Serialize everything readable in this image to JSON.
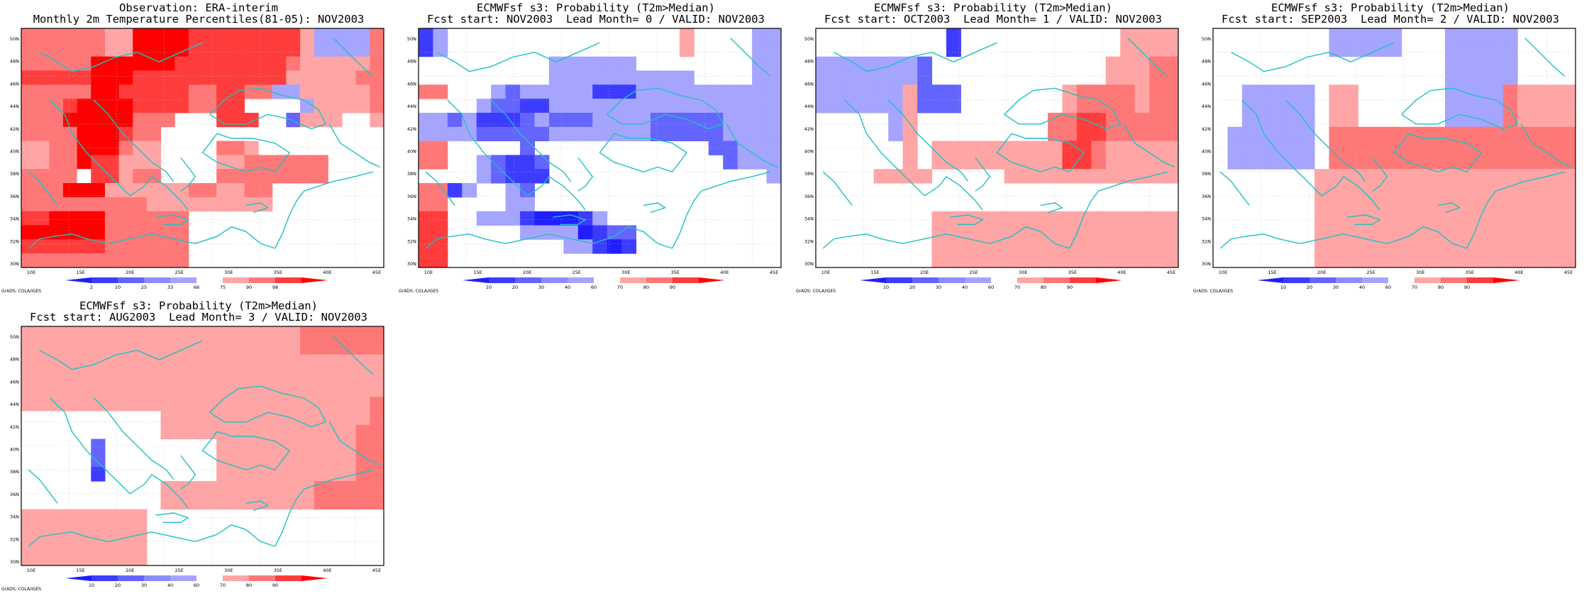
{
  "panels": [
    {
      "title1": "Observation: ERA-interim",
      "title2": "Monthly 2m Temperature Percentiles(81-05): NOV2003",
      "legend_labels": [
        "2",
        "10",
        "25",
        "33",
        "66",
        "75",
        "90",
        "98"
      ],
      "legend_type": "percentile",
      "credit": "GrADS: COLA/IGES",
      "grid": [
        "66666655888877777777544446",
        "66666655888877777777544446",
        "66666888888777777776555556",
        "77777888777777777775555566",
        "66666887777766776644555556",
        "66678888777766770000455556",
        "66688888666000777003555005",
        "66668887660000000000000000",
        "55668886550000665000000000",
        "55668775550000556666660000",
        "66669775660000666666660000",
        "66688855555566556600000000",
        "66666666655555555500000000",
        "77888866666600000000000000",
        "88888866666600000000000000",
        "77777766666600000000000000",
        "66666666666600000000000000"
      ]
    },
    {
      "title1": "ECMWFsf s3: Probability (T2m>Median)",
      "title2": "Fcst start: NOV2003  Lead Month= 0 / VALID: NOV2003",
      "legend_labels": [
        "10",
        "20",
        "30",
        "40",
        "60",
        "70",
        "80",
        "90"
      ],
      "legend_type": "probability",
      "credit": "GrADS: COLA/IGES",
      "grid": [
        "2400000000000000005000044",
        "2400000000000000005000044",
        "0000000004444440000000044",
        "0000000004444444444000044",
        "6600043444442224444444444",
        "0000433224444444444444444",
        "4434222343334444333334444",
        "4444333334444444333334444",
        "6600000300000000000033444",
        "6600432230000000000003444",
        "0000432220000000000000004",
        "6624004300000000000000000",
        "6600004400000000000000000",
        "7700444211124000000000000",
        "7700000444412330000000000",
        "7700000000442120000000000",
        "7700000000000000000000000"
      ]
    },
    {
      "title1": "ECMWFsf s3: Probability (T2m>Median)",
      "title2": "Fcst start: OCT2003  Lead Month= 1 / VALID: NOV2003",
      "legend_labels": [
        "10",
        "20",
        "30",
        "40",
        "60",
        "70",
        "80",
        "90"
      ],
      "legend_type": "probability",
      "credit": "GrADS: COLA/IGES",
      "grid": [
        "0000000002000000000005555",
        "0000000002000000000005555",
        "4444444300000000000055566",
        "4444444300000000000055566",
        "4444445333000000056666566",
        "4444445333000000056666566",
        "0000045000000000667766666",
        "0000045000000000667766666",
        "0000005055555555577655555",
        "0000005055555555577655555",
        "0000555500000555555555555",
        "0000000000000000000000000",
        "0000000000000000000000000",
        "0000000055555555555555555",
        "0000000055555555555555555",
        "0000000055555555555555555",
        "0000000055555555555555555"
      ]
    },
    {
      "title1": "ECMWFsf s3: Probability (T2m>Median)",
      "title2": "Fcst start: SEP2003  Lead Month= 2 / VALID: NOV2003",
      "legend_labels": [
        "10",
        "20",
        "30",
        "40",
        "60",
        "70",
        "80",
        "90"
      ],
      "legend_type": "probability",
      "credit": "GrADS: COLA/IGES",
      "grid": [
        "0000000044444000444440000",
        "0000000044444000444440000",
        "0000000000000000444440000",
        "0000000000000000444440000",
        "0044444055000000444465555",
        "0044444055000000444465555",
        "0044444055000000444465555",
        "0444444066666666666666666",
        "0444444066666666666666666",
        "0444444066666666666666666",
        "0000000555555555555555555",
        "0000000555555555555555555",
        "0000000555555555555555555",
        "0000000555555555555555555",
        "0000000555555555555555555",
        "0000000555555555555555555",
        "0000000555555555555555555"
      ]
    },
    {
      "title1": "ECMWFsf s3: Probability (T2m>Median)",
      "title2": "Fcst start: AUG2003  Lead Month= 3 / VALID: NOV2003",
      "legend_labels": [
        "10",
        "20",
        "30",
        "40",
        "60",
        "70",
        "80",
        "90"
      ],
      "legend_type": "probability",
      "credit": "GrADS: COLA/IGES",
      "grid": [
        "55555555555555555555666666",
        "55555555555555555555666666",
        "55555555555555555555555555",
        "55555555555555555555555555",
        "55555555555555555555555555",
        "55555555555555555555555556",
        "00000000005555555555555556",
        "00000000005555555555555566",
        "00000300000000555555555566",
        "00000300000000555555555566",
        "00000200000000555555555566",
        "00000000005555555555566666",
        "00000000005555555555566666",
        "55555555500000000000000000",
        "55555555500000000000000000",
        "55555555500000000000000000",
        "55555555500000000000000000"
      ]
    }
  ],
  "y_ticks": [
    "50N",
    "48N",
    "46N",
    "44N",
    "42N",
    "40N",
    "38N",
    "36N",
    "34N",
    "32N",
    "30N"
  ],
  "x_ticks": [
    "10E",
    "15E",
    "20E",
    "25E",
    "30E",
    "35E",
    "40E",
    "45E"
  ],
  "colors": {
    "percentile": [
      "#ffffff",
      "#1400ff",
      "#4b46ff",
      "#8282ff",
      "#a5a5ff",
      "#ffffff",
      "#ffa5a5",
      "#ff6464",
      "#ff1414"
    ],
    "probability": [
      "#ffffff",
      "#1400ff",
      "#4b46ff",
      "#8282ff",
      "#a5a5ff",
      "#ffffff",
      "#ffa5a5",
      "#ff6464",
      "#ff1414"
    ],
    "coast": "#20c0c0"
  }
}
